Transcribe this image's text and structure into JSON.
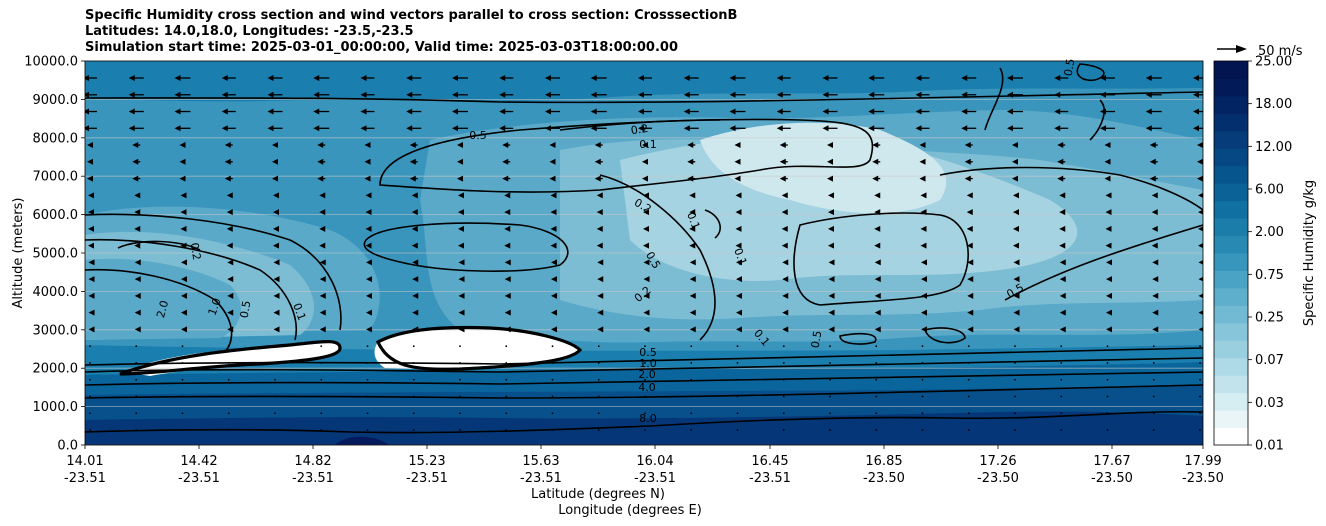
{
  "title": {
    "line1": "Specific Humidity cross section and wind vectors parallel to cross section: CrosssectionB",
    "line2": "Latitudes: 14.0,18.0, Longitudes: -23.5,-23.5",
    "line3": "Simulation start time: 2025-03-01_00:00:00, Valid time: 2025-03-03T18:00:00.00"
  },
  "chart_data": {
    "type": "contourf",
    "xlabel": "Latitude (degrees N)",
    "xlabel2": "Longitude (degrees E)",
    "ylabel": "Altitude (meters)",
    "ylim": [
      0,
      10000
    ],
    "yticks": [
      "0.0",
      "1000.0",
      "2000.0",
      "3000.0",
      "4000.0",
      "5000.0",
      "6000.0",
      "7000.0",
      "8000.0",
      "9000.0",
      "10000.0"
    ],
    "xticks_lat": [
      "14.01",
      "14.42",
      "14.82",
      "15.23",
      "15.63",
      "16.04",
      "16.45",
      "16.85",
      "17.26",
      "17.67",
      "17.99"
    ],
    "xticks_lon": [
      "-23.51",
      "-23.51",
      "-23.51",
      "-23.51",
      "-23.51",
      "-23.51",
      "-23.51",
      "-23.50",
      "-23.50",
      "-23.50",
      "-23.50"
    ],
    "colorbar_label": "Specific Humidity g/kg",
    "colorbar_ticks": [
      "0.01",
      "0.03",
      "0.07",
      "0.25",
      "0.75",
      "2.00",
      "6.00",
      "12.00",
      "18.00",
      "25.00"
    ],
    "contour_labels": [
      "8.0",
      "4.0",
      "2.0",
      "1.0",
      "0.5",
      "0.2",
      "0.1",
      "0.5",
      "0.2",
      "0.1",
      "2.0",
      "1.0",
      "0.5",
      "0.1",
      "0.5",
      "0.1",
      "0.2",
      "0.5",
      "0.1",
      "0.5",
      "0.2",
      "0.5"
    ],
    "quiver_key": "50 m/s",
    "colors": {
      "driest": "#f2f9fb",
      "dry": "#cfe8ee",
      "low": "#a6d3e1",
      "mid": "#7dbdd4",
      "midhigh": "#5aa9c9",
      "high": "#3a95bd",
      "wet": "#1a7fae",
      "wetter": "#0b659d",
      "moist": "#07508b",
      "wettest": "#053678",
      "max": "#041a5c"
    }
  }
}
